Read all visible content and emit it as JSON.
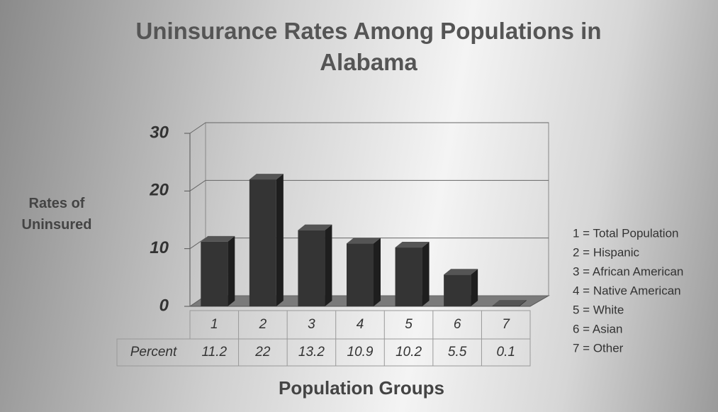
{
  "chart_data": {
    "type": "bar3d",
    "title": "Uninsurance Rates Among Populations in Alabama",
    "y_label": "Rates of Uninsured",
    "x_label": "Population Groups",
    "table_label": "Percent",
    "categories": [
      "1",
      "2",
      "3",
      "4",
      "5",
      "6",
      "7"
    ],
    "values": [
      11.2,
      22,
      13.2,
      10.9,
      10.2,
      5.5,
      0.1
    ],
    "color": "#343434",
    "ylim": [
      0,
      30
    ],
    "yticks": [
      0,
      10,
      20,
      30
    ],
    "grid": true,
    "legend": [
      "1 = Total Population",
      "2 = Hispanic",
      "3 = African American",
      "4 = Native American",
      "5 = White",
      "6 = Asian",
      "7 = Other"
    ]
  }
}
